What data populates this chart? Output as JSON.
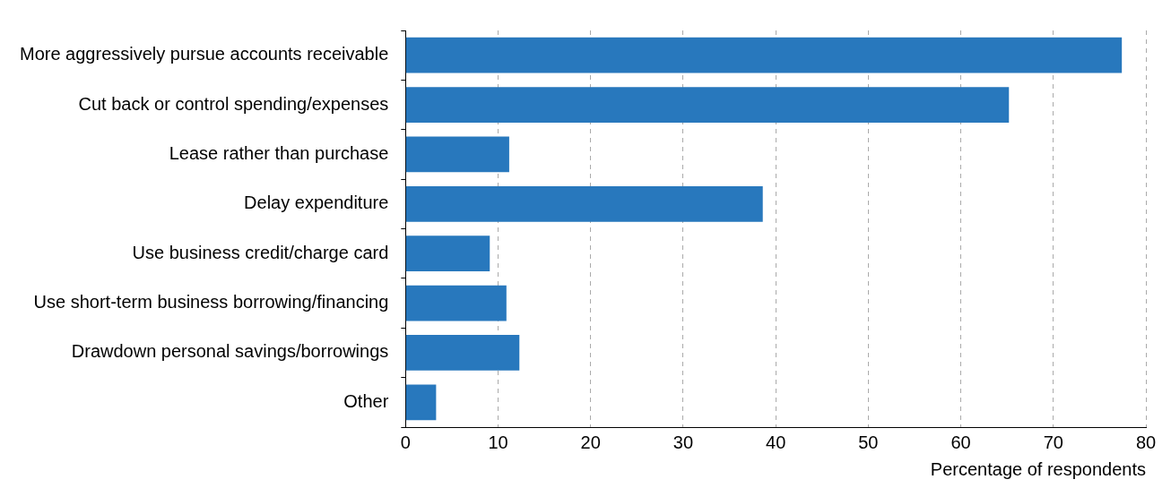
{
  "chart_data": {
    "type": "bar",
    "orientation": "horizontal",
    "xlabel": "Percentage of respondents",
    "categories": [
      "More aggressively pursue accounts receivable",
      "Cut back or control spending/expenses",
      "Lease rather than purchase",
      "Delay expenditure",
      "Use business credit/charge card",
      "Use short-term business borrowing/financing",
      "Drawdown personal savings/borrowings",
      "Other"
    ],
    "values": [
      77.4,
      65.2,
      11.2,
      38.6,
      9.1,
      10.9,
      12.3,
      3.3
    ],
    "color": "#2878bd",
    "xlim": [
      0,
      80
    ],
    "xticks": [
      0,
      10,
      20,
      30,
      40,
      50,
      60,
      70,
      80
    ],
    "grid": "x",
    "legend": false
  }
}
